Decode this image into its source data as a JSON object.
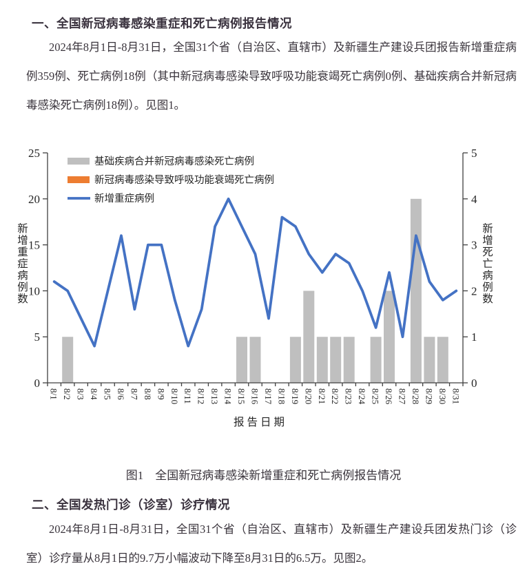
{
  "page": {
    "background": "#ffffff",
    "text_color": "#3a343c"
  },
  "section1": {
    "heading": "一、全国新冠病毒感染重症和死亡病例报告情况",
    "paragraph": "2024年8月1日-8月31日，全国31个省（自治区、直辖市）及新疆生产建设兵团报告新增重症病例359例、死亡病例18例（其中新冠病毒感染导致呼吸功能衰竭死亡病例0例、基础疾病合并新冠病毒感染死亡病例18例）。见图1。"
  },
  "figure1": {
    "caption": "图1　全国新冠病毒感染新增重症和死亡病例报告情况"
  },
  "section2": {
    "heading": "二、全国发热门诊（诊室）诊疗情况",
    "paragraph": "2024年8月1日-8月31日，全国31个省（自治区、直辖市）及新疆生产建设兵团发热门诊（诊室）诊疗量从8月1日的9.7万小幅波动下降至8月31日的6.5万。见图2。"
  },
  "chart_data": {
    "type": "bar",
    "subtype": "combo-bar-line",
    "categories": [
      "8/1",
      "8/2",
      "8/3",
      "8/4",
      "8/5",
      "8/6",
      "8/7",
      "8/8",
      "8/9",
      "8/10",
      "8/11",
      "8/12",
      "8/13",
      "8/14",
      "8/15",
      "8/16",
      "8/17",
      "8/18",
      "8/19",
      "8/20",
      "8/21",
      "8/22",
      "8/23",
      "8/24",
      "8/25",
      "8/26",
      "8/27",
      "8/28",
      "8/29",
      "8/30",
      "8/31"
    ],
    "series": [
      {
        "name": "基础疾病合并新冠病毒感染死亡病例",
        "kind": "bar",
        "axis": "right",
        "color": "#bfbfbf",
        "values": [
          0,
          1,
          0,
          0,
          0,
          0,
          0,
          0,
          0,
          0,
          0,
          0,
          0,
          0,
          1,
          1,
          0,
          0,
          1,
          2,
          1,
          1,
          1,
          0,
          1,
          2,
          0,
          4,
          1,
          1,
          0
        ]
      },
      {
        "name": "新冠病毒感染导致呼吸功能衰竭死亡病例",
        "kind": "bar",
        "axis": "right",
        "color": "#ed7d31",
        "values": [
          0,
          0,
          0,
          0,
          0,
          0,
          0,
          0,
          0,
          0,
          0,
          0,
          0,
          0,
          0,
          0,
          0,
          0,
          0,
          0,
          0,
          0,
          0,
          0,
          0,
          0,
          0,
          0,
          0,
          0,
          0
        ]
      },
      {
        "name": "新增重症病例",
        "kind": "line",
        "axis": "left",
        "color": "#4472c4",
        "values": [
          11,
          10,
          7,
          4,
          10,
          16,
          8,
          15,
          15,
          9,
          4,
          8,
          17,
          20,
          17,
          14,
          7,
          18,
          17,
          14,
          12,
          14,
          13,
          10,
          6,
          12,
          5,
          16,
          11,
          9,
          10
        ]
      }
    ],
    "left_axis": {
      "label": "新增重症病例数",
      "min": 0,
      "max": 25,
      "step": 5,
      "ticks": [
        0,
        5,
        10,
        15,
        20,
        25
      ]
    },
    "right_axis": {
      "label": "新增死亡病例数",
      "min": 0,
      "max": 5,
      "step": 1,
      "ticks": [
        0,
        1,
        2,
        3,
        4,
        5
      ]
    },
    "xlabel": "报告日期",
    "grid": false,
    "legend_position": "top-left-inside",
    "axis_color": "#3f3f3f",
    "tick_text_color": "#262626"
  }
}
